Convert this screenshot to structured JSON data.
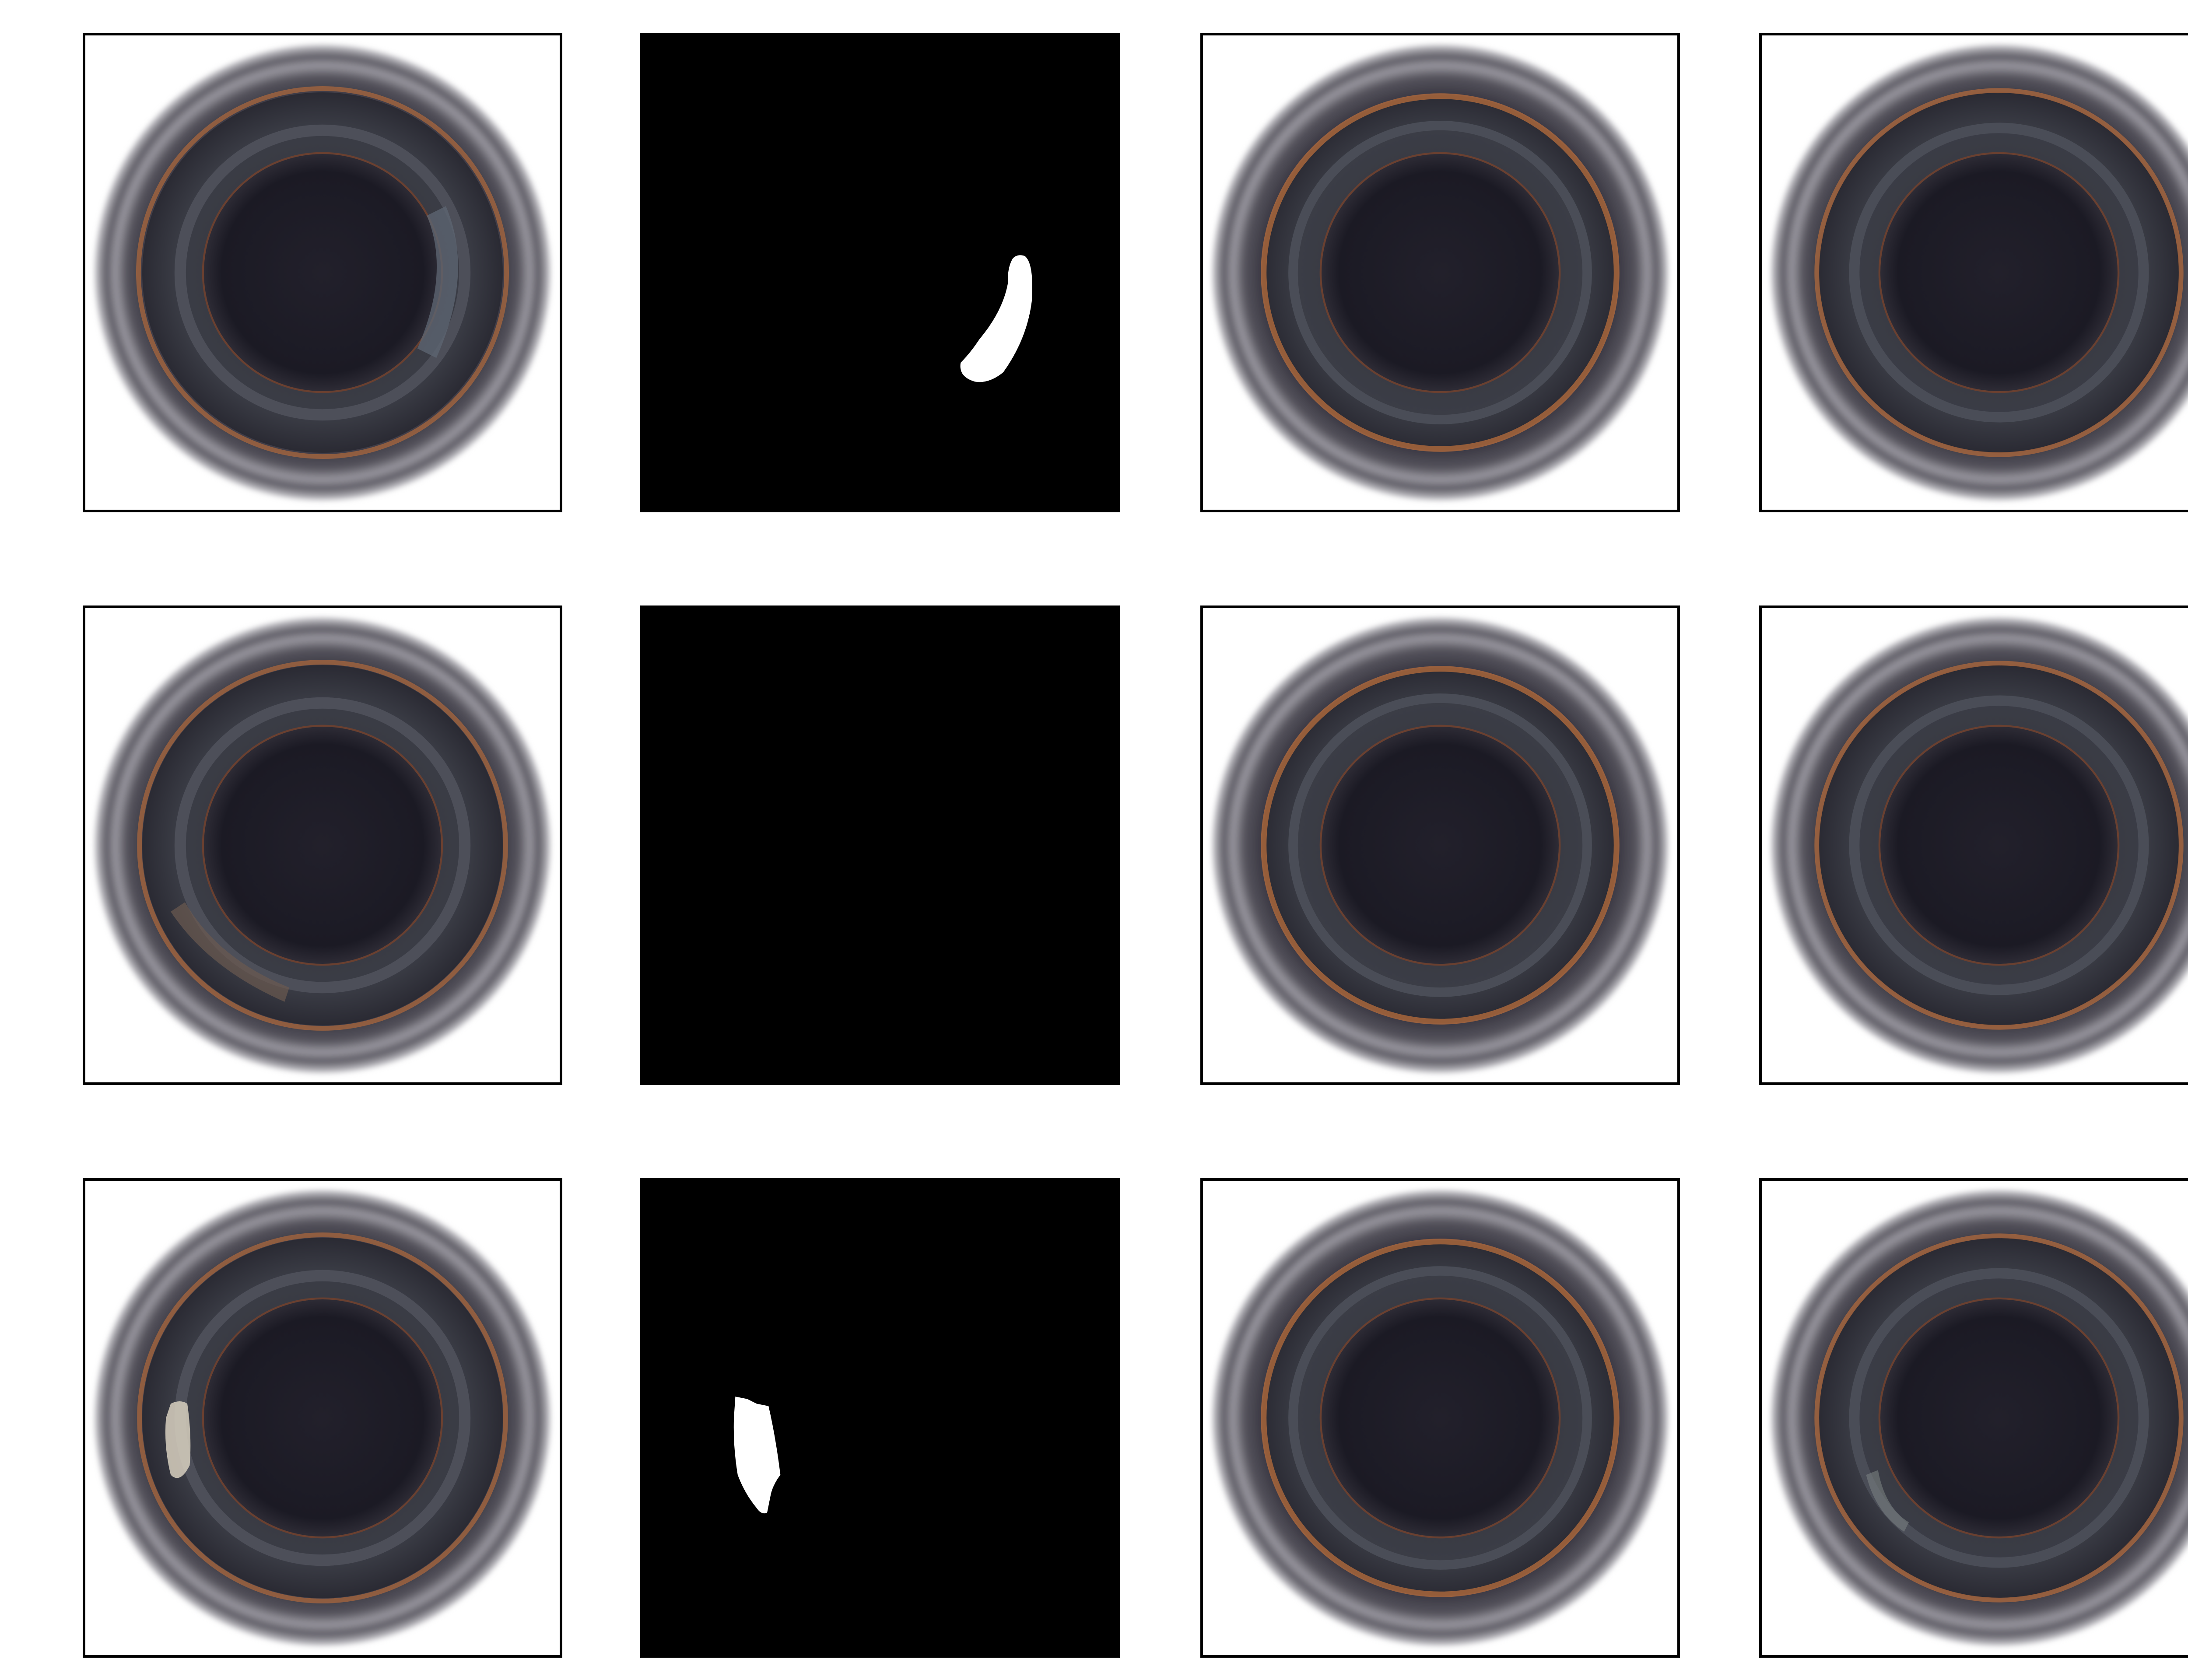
{
  "figure": {
    "rows": [
      {
        "row": 1,
        "panels": [
          {
            "kind": "photo",
            "variant": "defect",
            "defect_side": "right"
          },
          {
            "kind": "mask",
            "has_region": true,
            "region_side": "right"
          },
          {
            "kind": "photo",
            "variant": "reconstruction"
          },
          {
            "kind": "photo",
            "variant": "reconstruction"
          }
        ]
      },
      {
        "row": 2,
        "panels": [
          {
            "kind": "photo",
            "variant": "defect",
            "defect_side": "lower-left"
          },
          {
            "kind": "mask",
            "has_region": false
          },
          {
            "kind": "photo",
            "variant": "reconstruction"
          },
          {
            "kind": "photo",
            "variant": "reconstruction"
          }
        ]
      },
      {
        "row": 3,
        "panels": [
          {
            "kind": "photo",
            "variant": "defect",
            "defect_side": "left"
          },
          {
            "kind": "mask",
            "has_region": true,
            "region_side": "left"
          },
          {
            "kind": "photo",
            "variant": "reconstruction"
          },
          {
            "kind": "photo",
            "variant": "reconstruction"
          }
        ]
      }
    ],
    "colors": {
      "background": "#ffffff",
      "frame": "#000000",
      "mask_bg": "#000000",
      "mask_region": "#ffffff",
      "bottle_outer": "#4b4a52",
      "bottle_ring_light": "#8a8890",
      "copper_ring": "#b06a3c",
      "bottle_center": "#1e1c27"
    }
  }
}
